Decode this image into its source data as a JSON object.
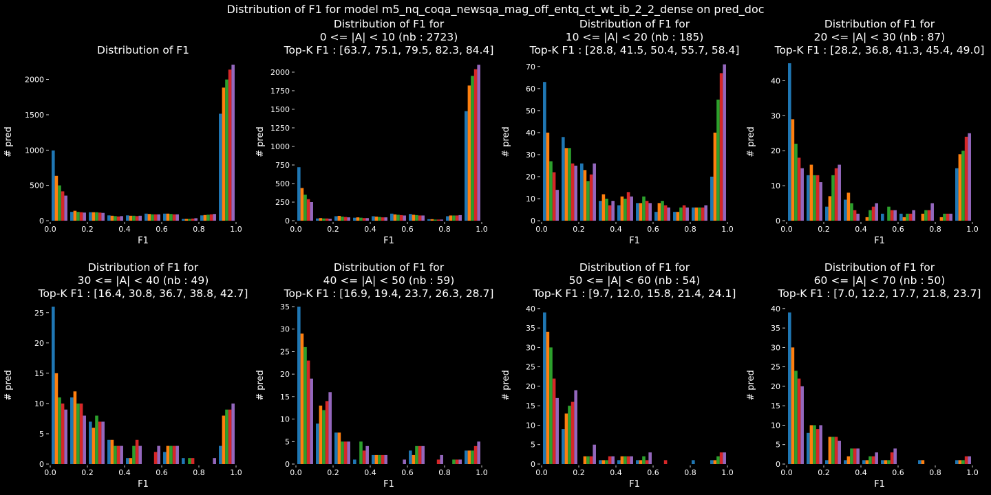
{
  "suptitle": "Distribution of F1 for model m5_nq_coqa_newsqa_mag_off_entq_ct_wt_ib_2_2_dense on pred_doc",
  "series_colors": [
    "#1f77b4",
    "#ff7f0e",
    "#2ca02c",
    "#d62728",
    "#9467bd"
  ],
  "chart_data": [
    {
      "type": "bar",
      "title": "Distribution of F1",
      "title_lines": [
        "Distribution of F1"
      ],
      "xlabel": "F1",
      "ylabel": "# pred",
      "xlim": [
        0,
        1
      ],
      "ylim": [
        0,
        2230
      ],
      "yticks": [
        0,
        500,
        1000,
        1500,
        2000
      ],
      "yticklabels": [
        "0",
        "500",
        "1000",
        "1500",
        "2000"
      ],
      "xticks": [
        0.0,
        0.2,
        0.4,
        0.6,
        0.8,
        1.0
      ],
      "xticklabels": [
        "0.0",
        "0.2",
        "0.4",
        "0.6",
        "0.8",
        "1.0"
      ],
      "bin_centers": [
        0.05,
        0.15,
        0.25,
        0.35,
        0.45,
        0.55,
        0.65,
        0.75,
        0.85,
        0.95
      ],
      "series": [
        {
          "values": [
            995,
            125,
            120,
            75,
            75,
            100,
            100,
            25,
            75,
            1515
          ]
        },
        {
          "values": [
            635,
            140,
            120,
            70,
            70,
            95,
            100,
            25,
            80,
            1885
          ]
        },
        {
          "values": [
            500,
            125,
            120,
            65,
            70,
            90,
            95,
            25,
            85,
            2000
          ]
        },
        {
          "values": [
            415,
            120,
            115,
            60,
            65,
            90,
            90,
            30,
            90,
            2140
          ]
        },
        {
          "values": [
            355,
            115,
            110,
            65,
            70,
            90,
            90,
            35,
            95,
            2210
          ]
        }
      ]
    },
    {
      "type": "bar",
      "title": "Distribution of F1 for 0 <= |A| < 10 (nb : 2723) Top-K F1 : [63.7, 75.1, 79.5, 82.3, 84.4]",
      "title_lines": [
        "Distribution of F1 for",
        "0 <= |A| < 10 (nb : 2723)",
        "Top-K F1 : [63.7, 75.1, 79.5, 82.3, 84.4]"
      ],
      "xlabel": "F1",
      "ylabel": "# pred",
      "xlim": [
        0,
        1
      ],
      "ylim": [
        0,
        2120
      ],
      "yticks": [
        0,
        250,
        500,
        750,
        1000,
        1250,
        1500,
        1750,
        2000
      ],
      "yticklabels": [
        "0",
        "250",
        "500",
        "750",
        "1000",
        "1250",
        "1500",
        "1750",
        "2000"
      ],
      "xticks": [
        0.0,
        0.2,
        0.4,
        0.6,
        0.8,
        1.0
      ],
      "xticklabels": [
        "0.0",
        "0.2",
        "0.4",
        "0.6",
        "0.8",
        "1.0"
      ],
      "bin_centers": [
        0.05,
        0.15,
        0.25,
        0.35,
        0.45,
        0.55,
        0.65,
        0.75,
        0.85,
        0.95
      ],
      "series": [
        {
          "values": [
            720,
            30,
            60,
            40,
            60,
            95,
            90,
            20,
            60,
            1475
          ]
        },
        {
          "values": [
            440,
            35,
            65,
            45,
            55,
            85,
            80,
            20,
            70,
            1820
          ]
        },
        {
          "values": [
            350,
            30,
            55,
            40,
            50,
            80,
            75,
            15,
            70,
            1950
          ]
        },
        {
          "values": [
            290,
            30,
            50,
            35,
            45,
            75,
            70,
            15,
            70,
            2040
          ]
        },
        {
          "values": [
            250,
            25,
            45,
            35,
            45,
            70,
            70,
            15,
            75,
            2100
          ]
        }
      ]
    },
    {
      "type": "bar",
      "title": "Distribution of F1 for 10 <= |A| < 20 (nb : 185) Top-K F1 : [28.8, 41.5, 50.4, 55.7, 58.4]",
      "title_lines": [
        "Distribution of F1 for",
        "10 <= |A| < 20 (nb : 185)",
        "Top-K F1 : [28.8, 41.5, 50.4, 55.7, 58.4]"
      ],
      "xlabel": "F1",
      "ylabel": "# pred",
      "xlim": [
        0,
        1
      ],
      "ylim": [
        0,
        71.5
      ],
      "yticks": [
        0,
        10,
        20,
        30,
        40,
        50,
        60,
        70
      ],
      "yticklabels": [
        "0",
        "10",
        "20",
        "30",
        "40",
        "50",
        "60",
        "70"
      ],
      "xticks": [
        0.0,
        0.2,
        0.4,
        0.6,
        0.8,
        1.0
      ],
      "xticklabels": [
        "0.0",
        "0.2",
        "0.4",
        "0.6",
        "0.8",
        "1.0"
      ],
      "bin_centers": [
        0.05,
        0.15,
        0.25,
        0.35,
        0.45,
        0.55,
        0.65,
        0.75,
        0.85,
        0.95
      ],
      "series": [
        {
          "values": [
            63,
            38,
            26,
            9,
            7,
            8,
            4,
            4,
            6,
            20
          ]
        },
        {
          "values": [
            40,
            33,
            23,
            12,
            11,
            8,
            8,
            4,
            6,
            40
          ]
        },
        {
          "values": [
            27,
            33,
            18,
            10,
            10,
            11,
            9,
            6,
            6,
            55
          ]
        },
        {
          "values": [
            22,
            26,
            21,
            7,
            13,
            9,
            7,
            7,
            6,
            67
          ]
        },
        {
          "values": [
            14,
            25,
            26,
            9,
            11,
            8,
            6,
            6,
            7,
            71
          ]
        }
      ]
    },
    {
      "type": "bar",
      "title": "Distribution of F1 for 20 <= |A| < 30 (nb : 87) Top-K F1 : [28.2, 36.8, 41.3, 45.4, 49.0]",
      "title_lines": [
        "Distribution of F1 for",
        "20 <= |A| < 30 (nb : 87)",
        "Top-K F1 : [28.2, 36.8, 41.3, 45.4, 49.0]"
      ],
      "xlabel": "F1",
      "ylabel": "# pred",
      "xlim": [
        0,
        1
      ],
      "ylim": [
        0,
        45
      ],
      "yticks": [
        0,
        10,
        20,
        30,
        40
      ],
      "yticklabels": [
        "0",
        "10",
        "20",
        "30",
        "40"
      ],
      "xticks": [
        0.0,
        0.2,
        0.4,
        0.6,
        0.8,
        1.0
      ],
      "xticklabels": [
        "0.0",
        "0.2",
        "0.4",
        "0.6",
        "0.8",
        "1.0"
      ],
      "bin_centers": [
        0.05,
        0.15,
        0.25,
        0.35,
        0.45,
        0.55,
        0.65,
        0.75,
        0.85,
        0.95
      ],
      "series": [
        {
          "values": [
            45,
            13,
            4,
            6,
            0,
            2,
            2,
            0,
            0,
            15
          ]
        },
        {
          "values": [
            29,
            16,
            7,
            8,
            1,
            0,
            1,
            2,
            1,
            19
          ]
        },
        {
          "values": [
            22,
            13,
            13,
            5,
            3,
            4,
            2,
            3,
            2,
            20
          ]
        },
        {
          "values": [
            18,
            13,
            15,
            3,
            4,
            3,
            2,
            3,
            2,
            24
          ]
        },
        {
          "values": [
            15,
            11,
            16,
            2,
            5,
            3,
            3,
            5,
            2,
            25
          ]
        }
      ]
    },
    {
      "type": "bar",
      "title": "Distribution of F1 for 30 <= |A| < 40 (nb : 49) Top-K F1 : [16.4, 30.8, 36.7, 38.8, 42.7]",
      "title_lines": [
        "Distribution of F1 for",
        "30 <= |A| < 40 (nb : 49)",
        "Top-K F1 : [16.4, 30.8, 36.7, 38.8, 42.7]"
      ],
      "xlabel": "F1",
      "ylabel": "# pred",
      "xlim": [
        0,
        1
      ],
      "ylim": [
        0,
        26
      ],
      "yticks": [
        0,
        5,
        10,
        15,
        20,
        25
      ],
      "yticklabels": [
        "0",
        "5",
        "10",
        "15",
        "20",
        "25"
      ],
      "xticks": [
        0.0,
        0.2,
        0.4,
        0.6,
        0.8,
        1.0
      ],
      "xticklabels": [
        "0.0",
        "0.2",
        "0.4",
        "0.6",
        "0.8",
        "1.0"
      ],
      "bin_centers": [
        0.05,
        0.15,
        0.25,
        0.35,
        0.45,
        0.55,
        0.65,
        0.75,
        0.85,
        0.95
      ],
      "series": [
        {
          "values": [
            26,
            11,
            7,
            4,
            1,
            0,
            2,
            1,
            0,
            3
          ]
        },
        {
          "values": [
            15,
            12,
            6,
            4,
            1,
            0,
            3,
            0,
            0,
            8
          ]
        },
        {
          "values": [
            11,
            10,
            8,
            3,
            3,
            0,
            3,
            1,
            0,
            9
          ]
        },
        {
          "values": [
            10,
            10,
            7,
            3,
            4,
            2,
            3,
            1,
            0,
            9
          ]
        },
        {
          "values": [
            9,
            8,
            7,
            3,
            3,
            3,
            3,
            0,
            1,
            10
          ]
        }
      ]
    },
    {
      "type": "bar",
      "title": "Distribution of F1 for 40 <= |A| < 50 (nb : 59) Top-K F1 : [16.9, 19.4, 23.7, 26.3, 28.7]",
      "title_lines": [
        "Distribution of F1 for",
        "40 <= |A| < 50 (nb : 59)",
        "Top-K F1 : [16.9, 19.4, 23.7, 26.3, 28.7]"
      ],
      "xlabel": "F1",
      "ylabel": "# pred",
      "xlim": [
        0,
        1
      ],
      "ylim": [
        0,
        35
      ],
      "yticks": [
        0,
        5,
        10,
        15,
        20,
        25,
        30,
        35
      ],
      "yticklabels": [
        "0",
        "5",
        "10",
        "15",
        "20",
        "25",
        "30",
        "35"
      ],
      "xticks": [
        0.0,
        0.2,
        0.4,
        0.6,
        0.8,
        1.0
      ],
      "xticklabels": [
        "0.0",
        "0.2",
        "0.4",
        "0.6",
        "0.8",
        "1.0"
      ],
      "bin_centers": [
        0.05,
        0.15,
        0.25,
        0.35,
        0.45,
        0.55,
        0.65,
        0.75,
        0.85,
        0.95
      ],
      "series": [
        {
          "values": [
            35,
            9,
            7,
            1,
            2,
            0,
            3,
            0,
            0,
            3
          ]
        },
        {
          "values": [
            29,
            13,
            7,
            0,
            2,
            0,
            2,
            0,
            0,
            3
          ]
        },
        {
          "values": [
            26,
            12,
            5,
            5,
            2,
            0,
            4,
            0,
            1,
            3
          ]
        },
        {
          "values": [
            23,
            14,
            5,
            3,
            2,
            0,
            4,
            1,
            1,
            4
          ]
        },
        {
          "values": [
            19,
            16,
            5,
            4,
            2,
            1,
            4,
            2,
            1,
            5
          ]
        }
      ]
    },
    {
      "type": "bar",
      "title": "Distribution of F1 for 50 <= |A| < 60 (nb : 54) Top-K F1 : [9.7, 12.0, 15.8, 21.4, 24.1]",
      "title_lines": [
        "Distribution of F1 for",
        "50 <= |A| < 60 (nb : 54)",
        "Top-K F1 : [9.7, 12.0, 15.8, 21.4, 24.1]"
      ],
      "xlabel": "F1",
      "ylabel": "# pred",
      "xlim": [
        0,
        1
      ],
      "ylim": [
        0,
        40.5
      ],
      "yticks": [
        0,
        5,
        10,
        15,
        20,
        25,
        30,
        35,
        40
      ],
      "yticklabels": [
        "0",
        "5",
        "10",
        "15",
        "20",
        "25",
        "30",
        "35",
        "40"
      ],
      "xticks": [
        0.0,
        0.2,
        0.4,
        0.6,
        0.8,
        1.0
      ],
      "xticklabels": [
        "0.0",
        "0.2",
        "0.4",
        "0.6",
        "0.8",
        "1.0"
      ],
      "bin_centers": [
        0.05,
        0.15,
        0.25,
        0.35,
        0.45,
        0.55,
        0.65,
        0.75,
        0.85,
        0.95
      ],
      "series": [
        {
          "values": [
            39,
            9,
            0,
            1,
            1,
            1,
            0,
            0,
            1,
            1
          ]
        },
        {
          "values": [
            34,
            13,
            2,
            1,
            2,
            1,
            0,
            0,
            0,
            1
          ]
        },
        {
          "values": [
            30,
            15,
            2,
            1,
            2,
            2,
            0,
            0,
            0,
            2
          ]
        },
        {
          "values": [
            22,
            16,
            2,
            2,
            2,
            1,
            1,
            0,
            0,
            3
          ]
        },
        {
          "values": [
            17,
            19,
            5,
            2,
            2,
            3,
            0,
            0,
            0,
            3
          ]
        }
      ]
    },
    {
      "type": "bar",
      "title": "Distribution of F1 for 60 <= |A| < 70 (nb : 50) Top-K F1 : [7.0, 12.2, 17.7, 21.8, 23.7]",
      "title_lines": [
        "Distribution of F1 for",
        "60 <= |A| < 70 (nb : 50)",
        "Top-K F1 : [7.0, 12.2, 17.7, 21.8, 23.7]"
      ],
      "xlabel": "F1",
      "ylabel": "# pred",
      "xlim": [
        0,
        1
      ],
      "ylim": [
        0,
        40.5
      ],
      "yticks": [
        0,
        5,
        10,
        15,
        20,
        25,
        30,
        35,
        40
      ],
      "yticklabels": [
        "0",
        "5",
        "10",
        "15",
        "20",
        "25",
        "30",
        "35",
        "40"
      ],
      "xticks": [
        0.0,
        0.2,
        0.4,
        0.6,
        0.8,
        1.0
      ],
      "xticklabels": [
        "0.0",
        "0.2",
        "0.4",
        "0.6",
        "0.8",
        "1.0"
      ],
      "bin_centers": [
        0.05,
        0.15,
        0.25,
        0.35,
        0.45,
        0.55,
        0.65,
        0.75,
        0.85,
        0.95
      ],
      "series": [
        {
          "values": [
            39,
            8,
            1,
            1,
            1,
            1,
            0,
            1,
            0,
            1
          ]
        },
        {
          "values": [
            30,
            10,
            7,
            2,
            1,
            1,
            0,
            1,
            0,
            1
          ]
        },
        {
          "values": [
            24,
            10,
            7,
            4,
            2,
            1,
            0,
            0,
            0,
            1
          ]
        },
        {
          "values": [
            22,
            9,
            7,
            4,
            2,
            3,
            0,
            0,
            0,
            2
          ]
        },
        {
          "values": [
            20,
            10,
            6,
            4,
            3,
            4,
            0,
            0,
            0,
            2
          ]
        }
      ]
    }
  ]
}
